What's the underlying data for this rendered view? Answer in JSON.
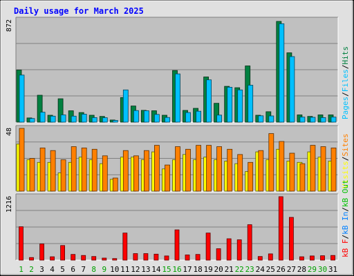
{
  "chart_data": {
    "type": "bar",
    "title": "Daily usage for March 2025",
    "categories": [
      "1",
      "2",
      "3",
      "4",
      "5",
      "6",
      "7",
      "8",
      "9",
      "10",
      "11",
      "12",
      "13",
      "14",
      "15",
      "16",
      "17",
      "18",
      "19",
      "20",
      "21",
      "22",
      "23",
      "24",
      "25",
      "26",
      "27",
      "28",
      "29",
      "30",
      "31"
    ],
    "weekend_days": [
      "1",
      "2",
      "8",
      "9",
      "15",
      "16",
      "22",
      "23",
      "29",
      "30"
    ],
    "panels": [
      {
        "id": "hits-files-pages",
        "ymax_label": "872",
        "ylim": [
          0,
          872
        ],
        "grid": true,
        "legend": [
          "Pages",
          "/",
          "Files",
          "/",
          "Hits"
        ],
        "series": [
          {
            "name": "Hits",
            "color": "#008040",
            "values": [
              445,
              36,
              230,
              59,
              200,
              97,
              82,
              59,
              49,
              18,
              210,
              138,
              101,
              97,
              59,
              441,
              100,
              118,
              386,
              161,
              306,
              294,
              480,
              59,
              89,
              860,
              592,
              62,
              49,
              62,
              62
            ]
          },
          {
            "name": "Files",
            "color": "#00c0ff",
            "values": [
              402,
              31,
              85,
              51,
              62,
              51,
              68,
              39,
              38,
              15,
              275,
              99,
              97,
              66,
              40,
              412,
              82,
              93,
              361,
              60,
              298,
              275,
              315,
              54,
              53,
              840,
              560,
              43,
              41,
              39,
              43
            ]
          }
        ]
      },
      {
        "id": "sites-visits",
        "ymax_label": "48",
        "ylim": [
          0,
          48
        ],
        "grid": true,
        "legend": [
          "Visits",
          "/",
          "Sites"
        ],
        "series": [
          {
            "name": "Visits",
            "color": "#ffff00",
            "values": [
              36,
              24,
              22,
              22,
              14,
              22,
              26,
              24,
              21,
              9,
              26,
              26,
              24,
              30,
              17,
              24,
              28,
              24,
              26,
              24,
              23,
              21,
              15,
              30,
              24,
              32,
              23,
              22,
              30,
              26,
              23
            ]
          },
          {
            "name": "Sites",
            "color": "#ff8000",
            "values": [
              48,
              25,
              33,
              31,
              24,
              34,
              33,
              32,
              27,
              10,
              31,
              27,
              31,
              35,
              20,
              34,
              32,
              35,
              35,
              34,
              32,
              28,
              22,
              31,
              44,
              38,
              29,
              21,
              35,
              34,
              33
            ]
          }
        ]
      },
      {
        "id": "kbytes",
        "ymax_label": "1216",
        "ylim": [
          0,
          1216
        ],
        "grid": true,
        "legend": [
          "kB F",
          "/",
          "kB In",
          "/",
          "kB Out"
        ],
        "series": [
          {
            "name": "kB F",
            "color": "#ff0000",
            "values": [
              640,
              50,
              310,
              65,
              280,
              110,
              90,
              70,
              40,
              30,
              520,
              125,
              125,
              115,
              80,
              580,
              100,
              110,
              520,
              220,
              410,
              390,
              680,
              70,
              120,
              1216,
              820,
              65,
              80,
              85,
              90
            ]
          }
        ]
      }
    ]
  }
}
